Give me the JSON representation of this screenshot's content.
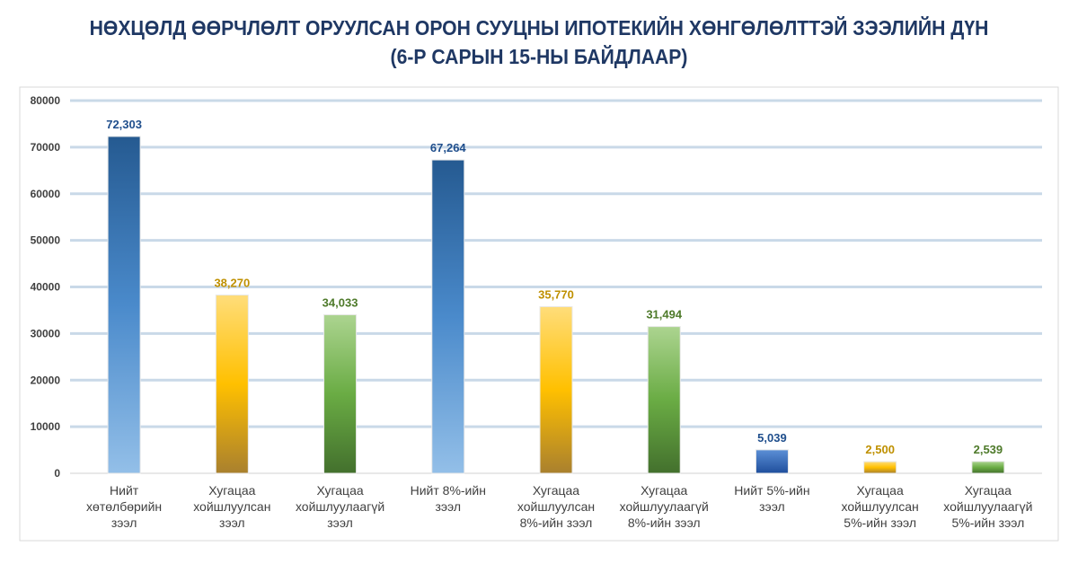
{
  "chart_data": {
    "type": "bar",
    "title": "НӨХЦӨЛД ӨӨРЧЛӨЛТ ОРУУЛСАН ОРОН СУУЦНЫ ИПОТЕКИЙН ХӨНГӨЛӨЛТТЭЙ ЗЭЭЛИЙН ДҮН",
    "subtitle": "(6-Р САРЫН 15-НЫ БАЙДЛААР)",
    "xlabel": "",
    "ylabel": "",
    "ylim": [
      0,
      80000
    ],
    "yticks": [
      0,
      10000,
      20000,
      30000,
      40000,
      50000,
      60000,
      70000,
      80000
    ],
    "grid": true,
    "categories": [
      [
        "Нийт",
        "хөтөлбөрийн",
        "зээл"
      ],
      [
        "Хугацаа",
        "хойшлуулсан",
        "зээл"
      ],
      [
        "Хугацаа",
        "хойшлуулаагүй",
        "зээл"
      ],
      [
        "Нийт 8%-ийн",
        "зээл"
      ],
      [
        "Хугацаа",
        "хойшлуулсан",
        "8%-ийн зээл"
      ],
      [
        "Хугацаа",
        "хойшлуулаагүй",
        "8%-ийн зээл"
      ],
      [
        "Нийт 5%-ийн",
        "зээл"
      ],
      [
        "Хугацаа",
        "хойшлуулсан",
        "5%-ийн зээл"
      ],
      [
        "Хугацаа",
        "хойшлуулаагүй",
        "5%-ийн зээл"
      ]
    ],
    "values": [
      72303,
      38270,
      34033,
      67264,
      35770,
      31494,
      5039,
      2500,
      2539
    ],
    "data_labels": [
      "72,303",
      "38,270",
      "34,033",
      "67,264",
      "35,770",
      "31,494",
      "5,039",
      "2,500",
      "2,539"
    ],
    "bar_styles": [
      "blue",
      "gold",
      "green",
      "blue",
      "gold",
      "green",
      "darkblue",
      "gold",
      "green"
    ]
  },
  "colors": {
    "title": "#1f3864",
    "label_blue": "#1f4e8c",
    "label_gold": "#bf9000",
    "label_green": "#4e7a2a",
    "grid": "#c9d9e8"
  }
}
